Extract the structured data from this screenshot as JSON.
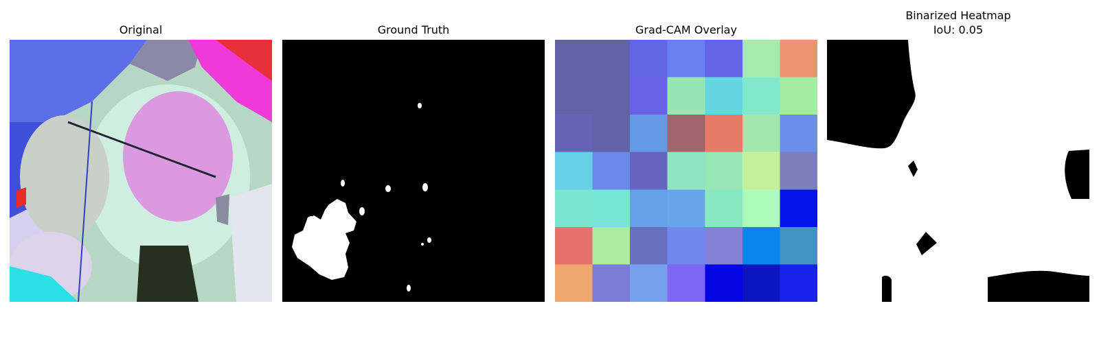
{
  "panels": [
    {
      "title": "Original",
      "subtitle": ""
    },
    {
      "title": "Ground Truth",
      "subtitle": ""
    },
    {
      "title": "Grad-CAM Overlay",
      "subtitle": ""
    },
    {
      "title": "Binarized Heatmap",
      "subtitle": "IoU: 0.05"
    }
  ],
  "gradcam_grid": [
    [
      "#6263a7",
      "#6263a7",
      "#5f65e3",
      "#6881ee",
      "#6664e6",
      "#a7eaad",
      "#ec9471"
    ],
    [
      "#6263a7",
      "#6263a7",
      "#6761e5",
      "#96e6b4",
      "#63d6e2",
      "#81e8cc",
      "#a5eba4"
    ],
    [
      "#6463b6",
      "#6263a7",
      "#6399e5",
      "#a1666b",
      "#e57a68",
      "#a3e7ad",
      "#6b8eea"
    ],
    [
      "#67cfe7",
      "#6b88e8",
      "#6664c0",
      "#8fe5c0",
      "#97e6b3",
      "#c4f099",
      "#7b7fbc"
    ],
    [
      "#79e4cf",
      "#76e4d6",
      "#66a1e7",
      "#6aa4ea",
      "#88eac2",
      "#acfbbb",
      "#0512ec"
    ],
    [
      "#e5726b",
      "#acec9e",
      "#6a70c0",
      "#7187ee",
      "#8581d9",
      "#0a85ea",
      "#4294c3"
    ],
    [
      "#eea76d",
      "#7a7cd6",
      "#77a0ef",
      "#7c66f2",
      "#0606e5",
      "#0b16c3",
      "#1822ea"
    ]
  ]
}
